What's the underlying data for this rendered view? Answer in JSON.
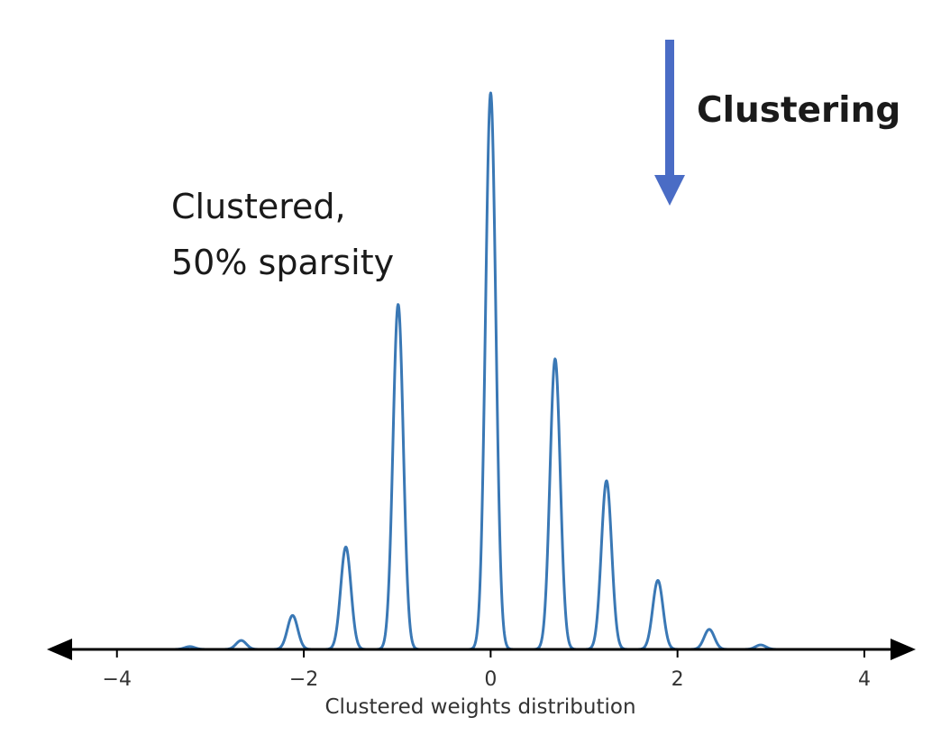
{
  "colors": {
    "curve": "#3a78b5",
    "arrow": "#4a6cc5",
    "axis": "#000000",
    "text": "#1a1a1a"
  },
  "annotations": {
    "clustered_line1": "Clustered,",
    "clustered_line2": "50% sparsity",
    "clustering": "Clustering"
  },
  "chart_data": {
    "type": "line",
    "title": "",
    "xlabel": "Clustered weights distribution",
    "ylabel": "",
    "xlim": [
      -4.75,
      4.55
    ],
    "ylim": [
      0,
      1.0
    ],
    "xticks": [
      -4,
      -2,
      0,
      2,
      4
    ],
    "xtick_labels": [
      "−4",
      "−2",
      "0",
      "2",
      "4"
    ],
    "grid": false,
    "legend": "none",
    "peaks": [
      {
        "x": -3.22,
        "y": 0.005
      },
      {
        "x": -2.67,
        "y": 0.016
      },
      {
        "x": -2.12,
        "y": 0.061
      },
      {
        "x": -1.55,
        "y": 0.184
      },
      {
        "x": -0.99,
        "y": 0.62
      },
      {
        "x": 0.0,
        "y": 1.0
      },
      {
        "x": 0.69,
        "y": 0.522
      },
      {
        "x": 1.24,
        "y": 0.303
      },
      {
        "x": 1.79,
        "y": 0.124
      },
      {
        "x": 2.34,
        "y": 0.036
      },
      {
        "x": 2.89,
        "y": 0.008
      }
    ]
  }
}
